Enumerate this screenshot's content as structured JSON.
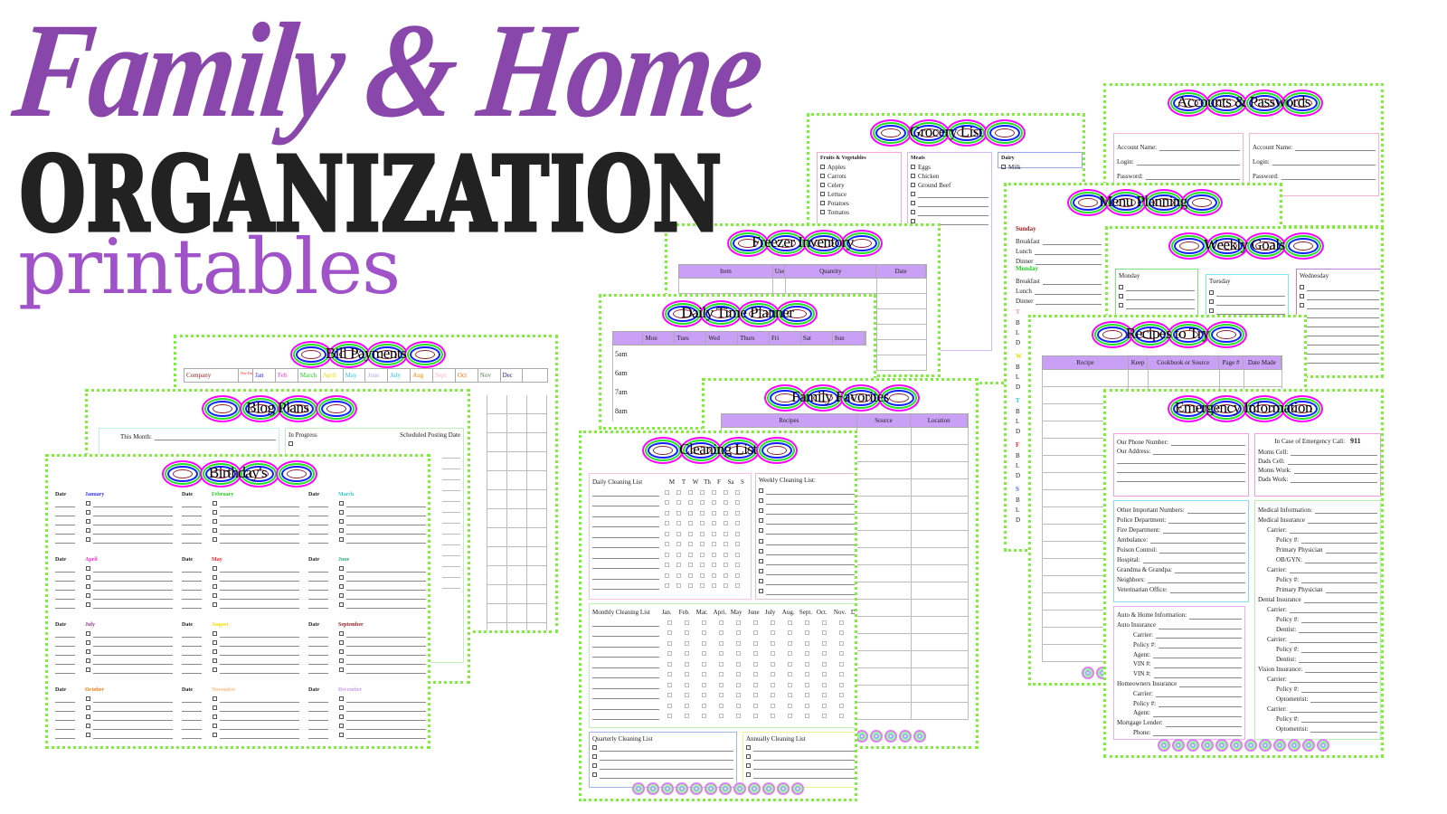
{
  "hero": {
    "line1": "Family & Home",
    "line2": "ORGANIZATION",
    "line3": "printables"
  },
  "colors": {
    "script": "#8a47ab",
    "headline": "#222222",
    "printables": "#a052c9",
    "sheet_border_dots": "#7ef03c",
    "table_header": "#c9a0f5",
    "rings": [
      "#ff00ff",
      "#22e022",
      "#1020ff",
      "#8b2030"
    ]
  },
  "sheets": {
    "accounts": {
      "title": "Accounts & Passwords",
      "fields": [
        "Account Name:",
        "Login:",
        "Password:"
      ]
    },
    "grocery": {
      "title": "Grocery List",
      "columns": [
        {
          "heading": "Fruits & Vegetables",
          "items": [
            "Apples",
            "Carrots",
            "Celery",
            "Lettuce",
            "Potatoes",
            "Tomatos"
          ]
        },
        {
          "heading": "Meats",
          "items": [
            "Eggs",
            "Chicken",
            "Ground Beef"
          ]
        },
        {
          "heading": "Dairy",
          "items": [
            "Milk"
          ]
        }
      ]
    },
    "menu": {
      "title": "Menu Planning",
      "days": [
        {
          "name": "Sunday",
          "color": "#9b1b1b"
        },
        {
          "name": "Monday",
          "color": "#22cc22"
        }
      ],
      "meals": [
        "Breakfast",
        "Lunch",
        "Dinner"
      ],
      "short_days": [
        {
          "letter": "T",
          "color": "#ff88cc"
        },
        {
          "letter": "W",
          "color": "#eedd00"
        },
        {
          "letter": "T",
          "color": "#22ccdd"
        },
        {
          "letter": "F",
          "color": "#ff2222"
        },
        {
          "letter": "S",
          "color": "#4466ff"
        }
      ],
      "short_meals": [
        "B",
        "L",
        "D"
      ]
    },
    "goals": {
      "title": "Weekly Goals",
      "days": [
        {
          "name": "Monday",
          "color": "#7fe07f"
        },
        {
          "name": "Tuesday",
          "color": "#7fe8f0"
        },
        {
          "name": "Wednesday",
          "color": "#c080e0"
        }
      ]
    },
    "freezer": {
      "title": "Freezer Inventory",
      "headers": [
        "Item",
        "Used",
        "Quantity",
        "Date"
      ]
    },
    "bills": {
      "title": "Bill Payments",
      "headers": [
        {
          "label": "Company",
          "color": "#8b1a1a"
        },
        {
          "label": "Due Date",
          "color": "#ff2222"
        },
        {
          "label": "Jan",
          "color": "#2222ff"
        },
        {
          "label": "Feb",
          "color": "#ff33cc"
        },
        {
          "label": "March",
          "color": "#22cc22"
        },
        {
          "label": "April",
          "color": "#eedd00"
        },
        {
          "label": "May",
          "color": "#33ccdd"
        },
        {
          "label": "June",
          "color": "#c0a0f0"
        },
        {
          "label": "July",
          "color": "#33bbff"
        },
        {
          "label": "Aug",
          "color": "#ff8800"
        },
        {
          "label": "Sept",
          "color": "#ffaacc"
        },
        {
          "label": "Oct",
          "color": "#ff6600"
        },
        {
          "label": "Nov",
          "color": "#448844"
        },
        {
          "label": "Dec",
          "color": "#222288"
        }
      ]
    },
    "planner": {
      "title": "Daily Time Planner",
      "headers": [
        "Mon",
        "Tues",
        "Wed",
        "Thurs",
        "Fri",
        "Sat",
        "Sun"
      ],
      "times": [
        "5am",
        "6am",
        "7am",
        "8am"
      ]
    },
    "recipes": {
      "title": "Recipes to Try",
      "headers": [
        "Recipe",
        "Keep",
        "Cookbook or Source",
        "Page #",
        "Date Made"
      ]
    },
    "favorites": {
      "title": "Family Favorites",
      "headers": [
        "Recipes",
        "Source",
        "Location"
      ]
    },
    "emergency": {
      "title": "Emergency Information",
      "home": [
        "Our Phone Number:",
        "Our Address:"
      ],
      "call": {
        "heading": "In Case of Emergency Call:",
        "number": "911",
        "fields": [
          "Moms Cell:",
          "Dads Cell:",
          "Moms Work:",
          "Dads Work:"
        ]
      },
      "important": [
        "Other Important Numbers:",
        "Police Department:",
        "Fire Department:",
        "Ambulance:",
        "Poison Control:",
        "Hospital:",
        "Grandma & Grandpa:",
        "Neighbors:",
        "Veterinarian Office:"
      ],
      "auto": [
        "Auto & Home Information:",
        "Auto Insurance",
        "Carrier:",
        "Policy #:",
        "Agent:",
        "VIN #:",
        "VIN #:",
        "Homeowners Insurance",
        "Carrier:",
        "Policy #:",
        "Agent:",
        "Mortgage Lender:",
        "Phone:"
      ],
      "medical": [
        "Medical Information:",
        "Medical Insurance",
        "Carrier:",
        "Policy #:",
        "Primary Physician",
        "OB/GYN:",
        "Carrier:",
        "Policy #:",
        "Primary Physician",
        "Dental Insurance",
        "Carrier:",
        "Policy #:",
        "Dentist:",
        "Carrier:",
        "Policy #:",
        "Dentist:",
        "Vision Insurance:",
        "Carrier:",
        "Policy #:",
        "Optometrist:",
        "Carrier:",
        "Policy #:",
        "Optometrist:"
      ]
    },
    "blog": {
      "title": "Blog Plans",
      "this_month": "This Month:",
      "in_progress": "In Progress",
      "scheduled": "Scheduled Posting Date"
    },
    "birthdays": {
      "title": "Birthday's",
      "date_label": "Date",
      "months": [
        {
          "name": "January",
          "color": "#3333ff"
        },
        {
          "name": "February",
          "color": "#22cc22"
        },
        {
          "name": "March",
          "color": "#33cccc"
        },
        {
          "name": "April",
          "color": "#ff22cc"
        },
        {
          "name": "May",
          "color": "#ff2222"
        },
        {
          "name": "June",
          "color": "#33aa88"
        },
        {
          "name": "July",
          "color": "#993399"
        },
        {
          "name": "August",
          "color": "#eedd00"
        },
        {
          "name": "September",
          "color": "#8b1a1a"
        },
        {
          "name": "October",
          "color": "#ff7700"
        },
        {
          "name": "November",
          "color": "#ffbb88"
        },
        {
          "name": "December",
          "color": "#c8a0f0"
        }
      ]
    },
    "cleaning": {
      "title": "Cleaning List",
      "daily": "Daily Cleaning List",
      "daily_days": [
        "M",
        "T",
        "W",
        "Th",
        "F",
        "Sa",
        "S"
      ],
      "weekly": "Weekly Cleaning List:",
      "monthly": "Monthly Cleaning List",
      "months": [
        "Jan.",
        "Feb.",
        "Mar.",
        "Apri.",
        "May",
        "June",
        "July",
        "Aug.",
        "Sept.",
        "Oct.",
        "Nov.",
        "Dec."
      ],
      "quarterly": "Quarterly Cleaning List",
      "annually": "Annually Cleaning List"
    }
  }
}
